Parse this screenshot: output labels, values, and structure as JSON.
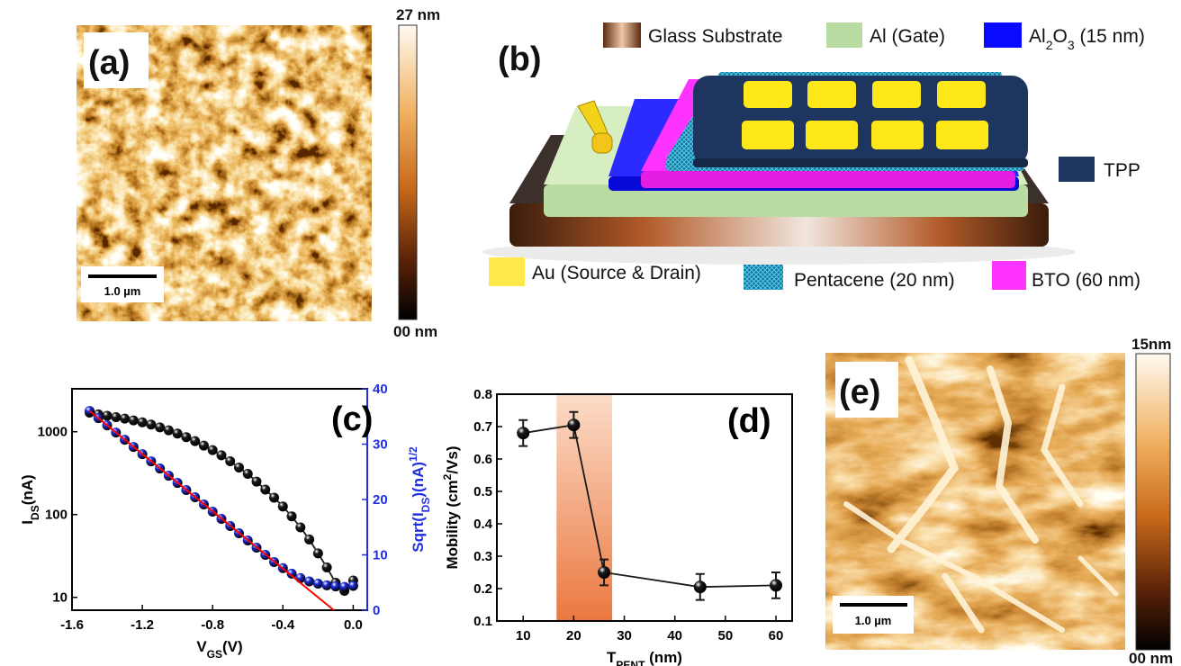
{
  "panel_a": {
    "label": "(a)",
    "scale_bar": "1.0 µm",
    "colorbar": {
      "max": "27 nm",
      "min": "00 nm"
    }
  },
  "panel_b": {
    "label": "(b)",
    "legend": {
      "glass": "Glass Substrate",
      "al": "Al (Gate)",
      "al2o3": [
        {
          "text": "Al"
        },
        {
          "text": "2",
          "sub": true
        },
        {
          "text": "O"
        },
        {
          "text": "3",
          "sub": true
        },
        {
          "text": " (15 nm)"
        }
      ],
      "tpp": "TPP",
      "au": "Au (Source & Drain)",
      "pentacene": "Pentacene (20 nm)",
      "bto": "BTO (60 nm)"
    }
  },
  "chart_data": [
    {
      "type": "line",
      "annotation": "(c)",
      "log_y": true,
      "x": [
        -1.5,
        -1.45,
        -1.4,
        -1.35,
        -1.3,
        -1.25,
        -1.2,
        -1.15,
        -1.1,
        -1.05,
        -1.0,
        -0.95,
        -0.9,
        -0.85,
        -0.8,
        -0.75,
        -0.7,
        -0.65,
        -0.6,
        -0.55,
        -0.5,
        -0.45,
        -0.4,
        -0.35,
        -0.3,
        -0.25,
        -0.2,
        -0.15,
        -0.1,
        -0.05,
        0.0
      ],
      "series": [
        {
          "color": "#1a1a1a",
          "marker": true,
          "axis": "y",
          "values": [
            1700,
            1620,
            1560,
            1500,
            1440,
            1370,
            1300,
            1220,
            1130,
            1040,
            950,
            860,
            770,
            680,
            600,
            520,
            440,
            370,
            310,
            250,
            200,
            160,
            125,
            95,
            70,
            50,
            34,
            23,
            15,
            12,
            16
          ]
        },
        {
          "color": "#1f2fe0",
          "marker": true,
          "axis": "y2",
          "values": [
            36,
            34.7,
            33.4,
            32.1,
            30.8,
            29.5,
            28.2,
            26.9,
            25.6,
            24.3,
            23.0,
            21.7,
            20.4,
            19.1,
            17.8,
            16.5,
            15.2,
            13.9,
            12.6,
            11.3,
            10.0,
            8.7,
            7.6,
            6.6,
            5.8,
            5.2,
            4.8,
            4.5,
            4.3,
            4.2,
            4.4
          ]
        },
        {
          "color": "#ff0000",
          "marker": false,
          "axis": "y2",
          "x": [
            -1.5,
            -0.11
          ],
          "values": [
            36,
            0
          ]
        }
      ],
      "xlim": [
        -1.6,
        0.08
      ],
      "xticks": [
        -1.6,
        -1.2,
        -0.8,
        -0.4,
        {
          "value": 0,
          "label": "0.0"
        }
      ],
      "ylim": [
        7,
        3300
      ],
      "yticks": [
        10,
        100,
        1000
      ],
      "y2lim": [
        0,
        40
      ],
      "y2ticks": [
        0,
        10,
        20,
        30,
        40
      ],
      "y2color": "#1f2fe0",
      "xlabel": [
        {
          "text": "V"
        },
        {
          "text": "GS",
          "sub": true
        },
        {
          "text": "(V)"
        }
      ],
      "ylabel": [
        {
          "text": "I"
        },
        {
          "text": "DS",
          "sub": true
        },
        {
          "text": "(nA)"
        }
      ],
      "y2label": [
        {
          "text": "Sqrt(I"
        },
        {
          "text": "DS",
          "sub": true
        },
        {
          "text": ")(nA)"
        },
        {
          "text": "1/2",
          "sup": true
        }
      ]
    },
    {
      "type": "line",
      "annotation": "(d)",
      "x": [
        10,
        20,
        26,
        45,
        60
      ],
      "series": [
        {
          "color": "#1a1a1a",
          "marker": true,
          "axis": "y",
          "values": [
            0.68,
            0.705,
            0.25,
            0.205,
            0.21
          ],
          "errors": [
            0.04,
            0.04,
            0.04,
            0.04,
            0.04
          ]
        }
      ],
      "highlight": [
        16.6,
        27.6
      ],
      "xlim": [
        4.8,
        63.2
      ],
      "xticks": [
        10,
        20,
        30,
        40,
        50,
        60
      ],
      "ylim": [
        0.1,
        0.8
      ],
      "yticks": [
        0.1,
        0.2,
        0.3,
        0.4,
        0.5,
        0.6,
        0.7,
        0.8
      ],
      "xlabel": [
        {
          "text": "T"
        },
        {
          "text": "PENT",
          "sub": true
        },
        {
          "text": " (nm)"
        }
      ],
      "ylabel": [
        {
          "text": "Mobility (cm"
        },
        {
          "text": "2",
          "sup": true
        },
        {
          "text": "/Vs)"
        }
      ]
    }
  ],
  "panel_e": {
    "label": "(e)",
    "scale_bar": "1.0 µm",
    "colorbar": {
      "max": "15nm",
      "min": "00 nm"
    }
  }
}
